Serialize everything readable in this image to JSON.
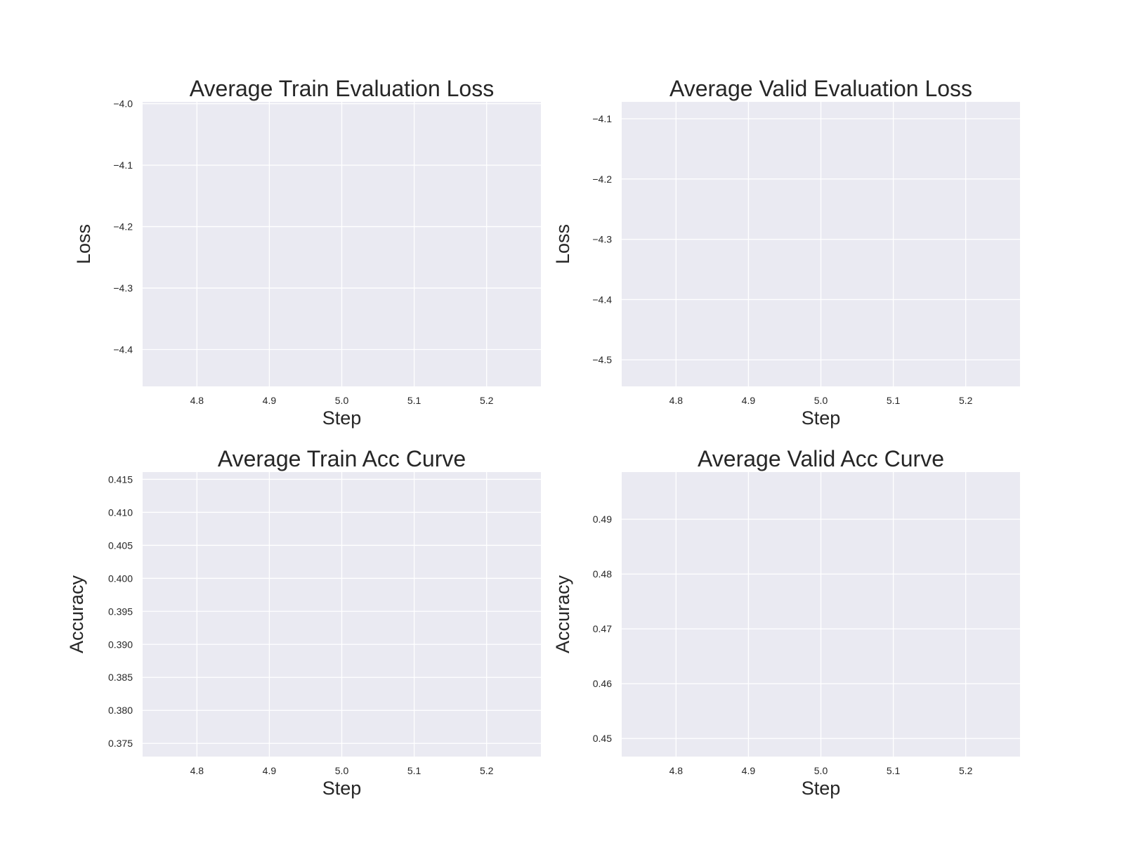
{
  "chart_data": [
    {
      "type": "line",
      "title": "Average Train Evaluation Loss",
      "xlabel": "Step",
      "ylabel": "Loss",
      "xlim": [
        4.725,
        5.275
      ],
      "ylim": [
        -4.46,
        -3.997
      ],
      "xticks": [
        4.8,
        4.9,
        5.0,
        5.1,
        5.2
      ],
      "xtick_labels": [
        "4.8",
        "4.9",
        "5.0",
        "5.1",
        "5.2"
      ],
      "yticks": [
        -4.0,
        -4.1,
        -4.2,
        -4.3,
        -4.4
      ],
      "ytick_labels": [
        "−4.0",
        "−4.1",
        "−4.2",
        "−4.3",
        "−4.4"
      ],
      "grid": true,
      "series": []
    },
    {
      "type": "line",
      "title": "Average Valid Evaluation Loss",
      "xlabel": "Step",
      "ylabel": "Loss",
      "xlim": [
        4.725,
        5.275
      ],
      "ylim": [
        -4.544,
        -4.072
      ],
      "xticks": [
        4.8,
        4.9,
        5.0,
        5.1,
        5.2
      ],
      "xtick_labels": [
        "4.8",
        "4.9",
        "5.0",
        "5.1",
        "5.2"
      ],
      "yticks": [
        -4.1,
        -4.2,
        -4.3,
        -4.4,
        -4.5
      ],
      "ytick_labels": [
        "−4.1",
        "−4.2",
        "−4.3",
        "−4.4",
        "−4.5"
      ],
      "grid": true,
      "series": []
    },
    {
      "type": "line",
      "title": "Average Train Acc Curve",
      "xlabel": "Step",
      "ylabel": "Accuracy",
      "xlim": [
        4.725,
        5.275
      ],
      "ylim": [
        0.373,
        0.4161
      ],
      "xticks": [
        4.8,
        4.9,
        5.0,
        5.1,
        5.2
      ],
      "xtick_labels": [
        "4.8",
        "4.9",
        "5.0",
        "5.1",
        "5.2"
      ],
      "yticks": [
        0.415,
        0.41,
        0.405,
        0.4,
        0.395,
        0.39,
        0.385,
        0.38,
        0.375
      ],
      "ytick_labels": [
        "0.415",
        "0.410",
        "0.405",
        "0.400",
        "0.395",
        "0.390",
        "0.385",
        "0.380",
        "0.375"
      ],
      "grid": true,
      "series": []
    },
    {
      "type": "line",
      "title": "Average Valid Acc Curve",
      "xlabel": "Step",
      "ylabel": "Accuracy",
      "xlim": [
        4.725,
        5.275
      ],
      "ylim": [
        0.4467,
        0.4986
      ],
      "xticks": [
        4.8,
        4.9,
        5.0,
        5.1,
        5.2
      ],
      "xtick_labels": [
        "4.8",
        "4.9",
        "5.0",
        "5.1",
        "5.2"
      ],
      "yticks": [
        0.49,
        0.48,
        0.47,
        0.46,
        0.45
      ],
      "ytick_labels": [
        "0.49",
        "0.48",
        "0.47",
        "0.46",
        "0.45"
      ],
      "grid": true,
      "series": []
    }
  ],
  "colors": {
    "figure_background": "#ffffff",
    "axes_background": "#eaeaf2",
    "grid": "#ffffff",
    "text": "#262626"
  }
}
